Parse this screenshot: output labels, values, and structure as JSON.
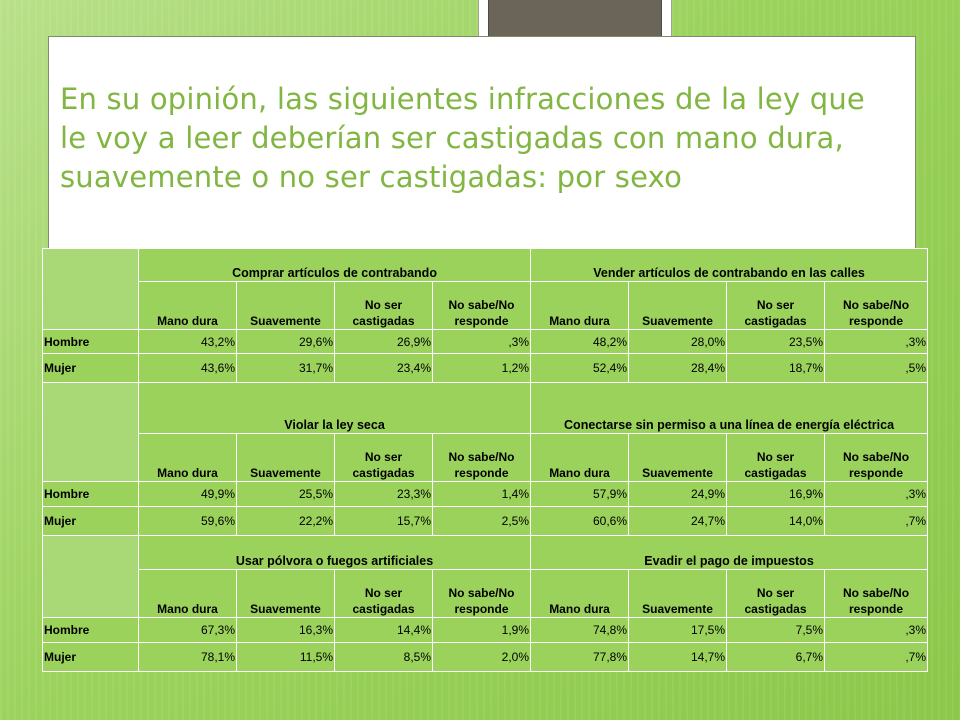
{
  "title": "En su opinión, las siguientes infracciones de la ley que le voy a leer deberían ser castigadas con mano dura, suavemente o no ser castigadas: por sexo",
  "subheaders": [
    "Mano dura",
    "Suavemente",
    "No ser castigadas",
    "No sabe/No responde"
  ],
  "blocks": [
    {
      "group1": "Comprar artículos de contrabando",
      "group2": "Vender artículos de contrabando en las calles",
      "rows": [
        {
          "label": "Hombre",
          "values": [
            "43,2%",
            "29,6%",
            "26,9%",
            ",3%",
            "48,2%",
            "28,0%",
            "23,5%",
            ",3%"
          ]
        },
        {
          "label": "Mujer",
          "values": [
            "43,6%",
            "31,7%",
            "23,4%",
            "1,2%",
            "52,4%",
            "28,4%",
            "18,7%",
            ",5%"
          ]
        }
      ]
    },
    {
      "group1": "Violar la ley seca",
      "group2": "Conectarse sin permiso a una línea de energía eléctrica",
      "rows": [
        {
          "label": "Hombre",
          "values": [
            "49,9%",
            "25,5%",
            "23,3%",
            "1,4%",
            "57,9%",
            "24,9%",
            "16,9%",
            ",3%"
          ]
        },
        {
          "label": "Mujer",
          "values": [
            "59,6%",
            "22,2%",
            "15,7%",
            "2,5%",
            "60,6%",
            "24,7%",
            "14,0%",
            ",7%"
          ]
        }
      ]
    },
    {
      "group1": "Usar pólvora o fuegos artificiales",
      "group2": "Evadir el pago de impuestos",
      "rows": [
        {
          "label": "Hombre",
          "values": [
            "67,3%",
            "16,3%",
            "14,4%",
            "1,9%",
            "74,8%",
            "17,5%",
            "7,5%",
            ",3%"
          ]
        },
        {
          "label": "Mujer",
          "values": [
            "78,1%",
            "11,5%",
            "8,5%",
            "2,0%",
            "77,8%",
            "14,7%",
            "6,7%",
            ",7%"
          ]
        }
      ]
    }
  ]
}
